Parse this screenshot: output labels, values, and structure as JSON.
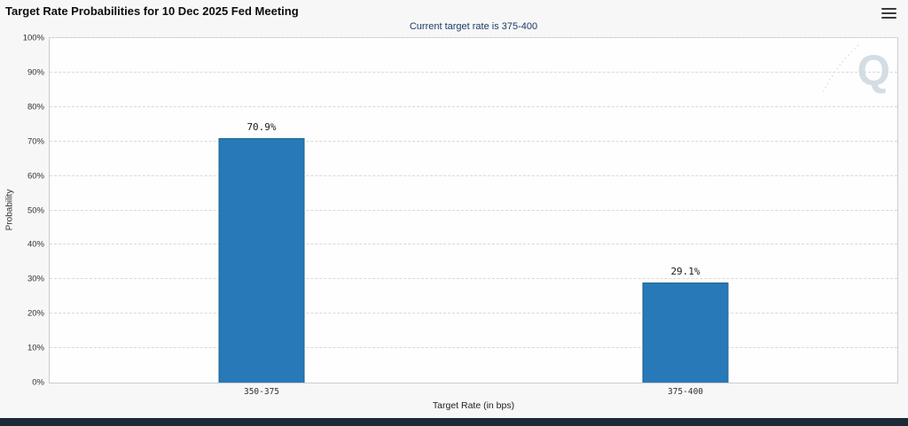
{
  "header": {
    "title": "Target Rate Probabilities for 10 Dec 2025 Fed Meeting",
    "subtitle": "Current target rate is 375-400"
  },
  "icons": {
    "menu": "hamburger-menu-icon"
  },
  "watermark": {
    "letter": "Q"
  },
  "chart_data": {
    "type": "bar",
    "title": "Target Rate Probabilities for 10 Dec 2025 Fed Meeting",
    "subtitle": "Current target rate is 375-400",
    "categories": [
      "350-375",
      "375-400"
    ],
    "values": [
      70.9,
      29.1
    ],
    "value_labels": [
      "70.9%",
      "29.1%"
    ],
    "xlabel": "Target Rate (in bps)",
    "ylabel": "Probability",
    "ylim": [
      0,
      100
    ],
    "ytick_step": 10,
    "ytick_suffix": "%",
    "grid": "horizontal-dashed",
    "legend": "none"
  },
  "colors": {
    "bar": "#2779b7",
    "bar_border": "#20638f",
    "subtitle": "#1d3b66",
    "grid": "#d9d9d9",
    "plot_border": "#c9ced4",
    "background": "#f7f7f7",
    "plot_background": "#fefefe",
    "bottom_bar": "#1d2935",
    "watermark": "#d3dde3"
  }
}
